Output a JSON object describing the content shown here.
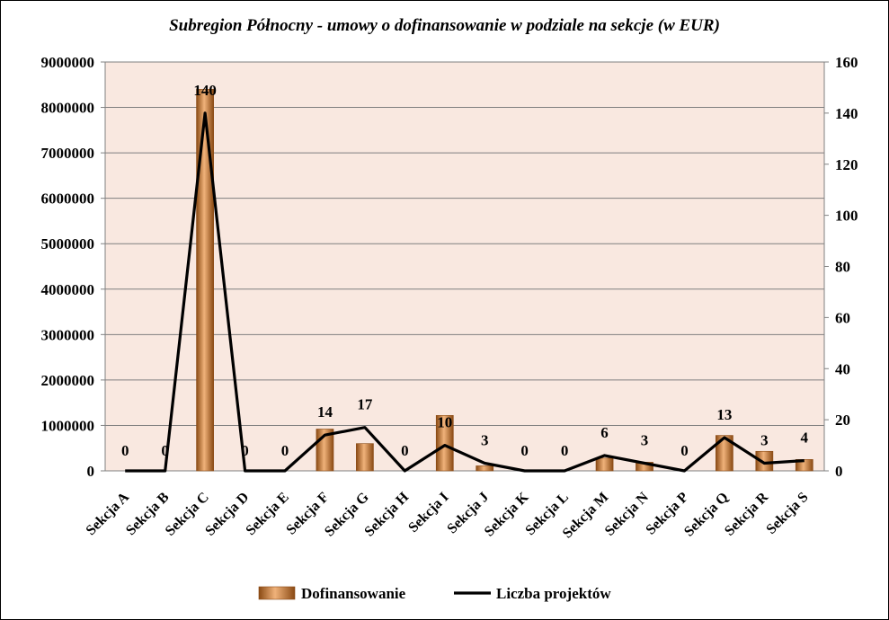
{
  "chart_data": {
    "type": "bar",
    "title": "Subregion Północny - umowy o dofinansowanie w podziale na sekcje (w EUR)",
    "categories": [
      "Sekcja A",
      "Sekcja B",
      "Sekcja C",
      "Sekcja D",
      "Sekcja E",
      "Sekcja F",
      "Sekcja G",
      "Sekcja H",
      "Sekcja I",
      "Sekcja J",
      "Sekcja K",
      "Sekcja L",
      "Sekcja M",
      "Sekcja N",
      "Sekcja P",
      "Sekcja Q",
      "Sekcja R",
      "Sekcja S"
    ],
    "series": [
      {
        "name": "Dofinansowanie",
        "type": "bar",
        "axis": "left",
        "values": [
          0,
          0,
          8400000,
          0,
          0,
          920000,
          600000,
          0,
          1220000,
          110000,
          0,
          0,
          280000,
          190000,
          0,
          780000,
          430000,
          250000
        ]
      },
      {
        "name": "Liczba projektów",
        "type": "line",
        "axis": "right",
        "values": [
          0,
          0,
          140,
          0,
          0,
          14,
          17,
          0,
          10,
          3,
          0,
          0,
          6,
          3,
          0,
          13,
          3,
          4
        ]
      }
    ],
    "data_labels": [
      "0",
      "0",
      "140",
      "0",
      "0",
      "14",
      "17",
      "0",
      "10",
      "3",
      "0",
      "0",
      "6",
      "3",
      "0",
      "13",
      "3",
      "4"
    ],
    "y_left": {
      "ylim": [
        0,
        9000000
      ],
      "ticks": [
        "0",
        "1000000",
        "2000000",
        "3000000",
        "4000000",
        "5000000",
        "6000000",
        "7000000",
        "8000000",
        "9000000"
      ]
    },
    "y_right": {
      "ylim": [
        0,
        160
      ],
      "ticks": [
        "0",
        "20",
        "40",
        "60",
        "80",
        "100",
        "120",
        "140",
        "160"
      ]
    },
    "grid": true,
    "legend_position": "bottom",
    "colors": {
      "bar": "#c8752c",
      "bar_light": "#f0b27a",
      "bar_dark": "#8a4a14",
      "line": "#000000",
      "plot_bg": "#f9e8e0",
      "grid": "#7f7f7f"
    }
  }
}
